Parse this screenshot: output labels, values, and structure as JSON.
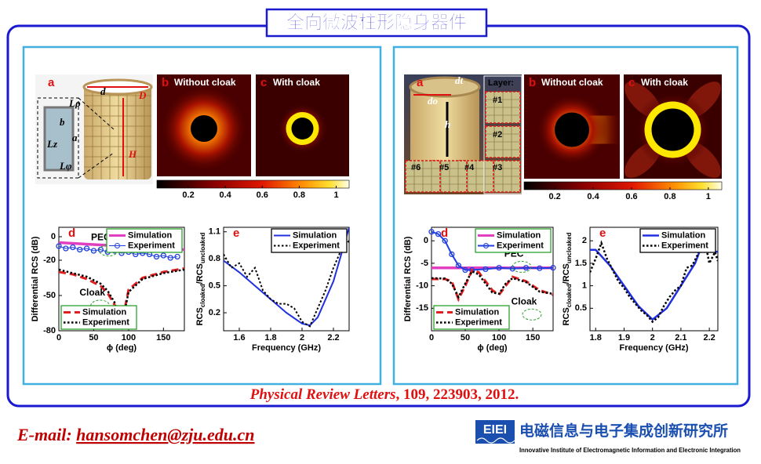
{
  "title": "全向微波柱形隐身器件",
  "citation": {
    "journal": "Physical Review Letters",
    "details": ", 109, 223903, 2012."
  },
  "email": {
    "label": "E-mail:",
    "address": "hansomchen@zju.edu.cn"
  },
  "logo": {
    "mark": "EIEI",
    "name": "电磁信息与电子集成创新研究所",
    "subtitle": "Innovative Institute of Electromagnetic Information and Electronic Integration"
  },
  "figures": [
    {
      "photo_label": "a",
      "photo_texts": [
        "Lρ",
        "b",
        "Lz",
        "a",
        "Lφ",
        "d",
        "D",
        "H"
      ],
      "maps": [
        {
          "label": "b",
          "title": "Without cloak"
        },
        {
          "label": "c",
          "title": "With cloak"
        }
      ],
      "colorbar": {
        "clim": [
          0.03,
          1.07
        ],
        "ticks": [
          0.2,
          0.4,
          0.6,
          0.8,
          1
        ]
      }
    },
    {
      "photo_label": "a",
      "photo_texts": [
        "dt",
        "do",
        "h",
        "Layer:",
        "#1",
        "#2",
        "#3",
        "#4",
        "#5",
        "#6"
      ],
      "maps": [
        {
          "label": "b",
          "title": "Without cloak"
        },
        {
          "label": "c",
          "title": "With cloak"
        }
      ],
      "colorbar": {
        "clim": [
          0.04,
          1.07
        ],
        "ticks": [
          0.2,
          0.4,
          0.6,
          0.8,
          1
        ]
      }
    }
  ],
  "chart_data": [
    {
      "type": "line",
      "label": "d",
      "ylabel_parts": [
        {
          "text": "Differential RCS (dB)"
        }
      ],
      "xlabel": "ϕ (deg)",
      "xlim": [
        0,
        180
      ],
      "ylim": [
        -80,
        8
      ],
      "xticks": [
        0,
        50,
        100,
        150
      ],
      "yticks": [
        0,
        -20,
        -50,
        -80
      ],
      "legend_edge": "#2ca02c",
      "series": [
        {
          "name": "Simulation",
          "color": "#e040c0",
          "style": "solid",
          "width": 3.5,
          "legend": "top-right",
          "x": [
            0,
            30,
            60,
            90,
            120,
            150,
            180
          ],
          "values": [
            -5,
            -6,
            -7,
            -8,
            -9,
            -10,
            -11
          ]
        },
        {
          "name": "Experiment",
          "color": "#2040e0",
          "style": "solid",
          "width": 1,
          "marker": "circle",
          "legend": "top-right",
          "x": [
            0,
            10,
            20,
            30,
            40,
            50,
            60,
            70,
            80,
            90,
            100,
            110,
            120,
            130,
            140,
            150,
            160,
            170
          ],
          "values": [
            -8,
            -10,
            -9,
            -11,
            -10,
            -12,
            -11,
            -13,
            -12,
            -14,
            -13,
            -15,
            -14,
            -15,
            -17,
            -16,
            -18,
            -17
          ]
        },
        {
          "name": "Simulation",
          "color": "#e02020",
          "style": "dashed",
          "width": 3,
          "legend": "bottom-left",
          "x": [
            0,
            20,
            40,
            60,
            70,
            80,
            85,
            90,
            95,
            100,
            120,
            150,
            180
          ],
          "values": [
            -30,
            -32,
            -36,
            -42,
            -48,
            -58,
            -68,
            -76,
            -60,
            -45,
            -35,
            -30,
            -27
          ]
        },
        {
          "name": "Experiment",
          "color": "#000000",
          "style": "dotted",
          "width": 2.5,
          "legend": "bottom-left",
          "x": [
            0,
            20,
            40,
            60,
            70,
            80,
            85,
            90,
            95,
            100,
            120,
            150,
            180
          ],
          "values": [
            -28,
            -31,
            -34,
            -40,
            -46,
            -56,
            -66,
            -78,
            -62,
            -47,
            -36,
            -31,
            -28
          ]
        }
      ],
      "annotations": [
        {
          "text": "PEC",
          "x": 60,
          "y": -1
        },
        {
          "text": "Cloak",
          "x": 48,
          "y": -48
        }
      ]
    },
    {
      "type": "line",
      "label": "e",
      "ylabel_parts": [
        {
          "text": "RCS"
        },
        {
          "text": "cloaked",
          "sub": true
        },
        {
          "text": "/RCS"
        },
        {
          "text": "uncloaked",
          "sub": true
        }
      ],
      "xlabel": "Frequency (GHz)",
      "xlim": [
        1.5,
        2.3
      ],
      "ylim": [
        0,
        1.15
      ],
      "xticks": [
        1.6,
        1.8,
        2,
        2.2
      ],
      "yticks": [
        0.2,
        0.5,
        0.8,
        1.1
      ],
      "legend_edge": "#000000",
      "series": [
        {
          "name": "Simulation",
          "color": "#2030e0",
          "style": "solid",
          "width": 2,
          "legend": "top-right",
          "x": [
            1.5,
            1.6,
            1.7,
            1.8,
            1.9,
            2.0,
            2.05,
            2.1,
            2.2,
            2.3
          ],
          "values": [
            0.78,
            0.65,
            0.5,
            0.35,
            0.2,
            0.08,
            0.06,
            0.15,
            0.55,
            1.15
          ]
        },
        {
          "name": "Experiment",
          "color": "#000000",
          "style": "dotted",
          "width": 2,
          "legend": "top-right",
          "x": [
            1.5,
            1.55,
            1.6,
            1.65,
            1.7,
            1.75,
            1.8,
            1.85,
            1.9,
            1.95,
            2.0,
            2.05,
            2.1,
            2.15,
            2.2,
            2.25,
            2.3
          ],
          "values": [
            0.85,
            0.7,
            0.75,
            0.6,
            0.7,
            0.45,
            0.35,
            0.3,
            0.3,
            0.25,
            0.1,
            0.05,
            0.25,
            0.45,
            0.7,
            0.9,
            1.0
          ]
        }
      ]
    },
    {
      "type": "line",
      "label": "d",
      "ylabel_parts": [
        {
          "text": "Differential RCS (dB)"
        }
      ],
      "xlabel": "ϕ (deg)",
      "xlim": [
        0,
        180
      ],
      "ylim": [
        -20,
        3
      ],
      "xticks": [
        0,
        50,
        100,
        150
      ],
      "yticks": [
        0,
        -5,
        -10,
        -15
      ],
      "legend_edge": "#2ca02c",
      "series": [
        {
          "name": "Simulation",
          "color": "#e040c0",
          "style": "solid",
          "width": 3.5,
          "legend": "top-right",
          "x": [
            0,
            60,
            120,
            180
          ],
          "values": [
            -6,
            -6,
            -6,
            -6
          ]
        },
        {
          "name": "Experiment",
          "color": "#2040e0",
          "style": "solid",
          "width": 2,
          "marker": "circle",
          "legend": "top-right",
          "x": [
            0,
            10,
            20,
            30,
            40,
            50,
            60,
            80,
            100,
            120,
            140,
            160,
            180
          ],
          "values": [
            2,
            1.5,
            0,
            -3,
            -5.5,
            -6.5,
            -6.5,
            -6.3,
            -6,
            -6.2,
            -6,
            -6.1,
            -6
          ]
        },
        {
          "name": "Simulation",
          "color": "#e02020",
          "style": "dashed",
          "width": 3,
          "legend": "bottom-left",
          "x": [
            0,
            20,
            30,
            40,
            50,
            60,
            70,
            80,
            90,
            100,
            110,
            120,
            140,
            160,
            180
          ],
          "values": [
            -8.5,
            -8.5,
            -9,
            -13,
            -10,
            -6.5,
            -7,
            -9,
            -11,
            -12,
            -10,
            -8,
            -9,
            -11,
            -12
          ]
        },
        {
          "name": "Experiment",
          "color": "#000000",
          "style": "dotted",
          "width": 2.5,
          "legend": "bottom-left",
          "x": [
            0,
            20,
            30,
            40,
            50,
            60,
            70,
            80,
            90,
            100,
            110,
            120,
            140,
            160,
            180
          ],
          "values": [
            -8.3,
            -8.4,
            -9.5,
            -12.5,
            -9.5,
            -6.8,
            -7.5,
            -9.5,
            -11.5,
            -11.8,
            -9.5,
            -8.3,
            -9.2,
            -11.3,
            -11.8
          ]
        }
      ],
      "annotations": [
        {
          "text": "PEC",
          "x": 122,
          "y": -3
        },
        {
          "text": "Cloak",
          "x": 137,
          "y": -13.6
        }
      ]
    },
    {
      "type": "line",
      "label": "e",
      "ylabel_parts": [
        {
          "text": "RCS"
        },
        {
          "text": "cloaked",
          "sub": true
        },
        {
          "text": "/RCS"
        },
        {
          "text": "uncloaked",
          "sub": true
        }
      ],
      "xlabel": "Frequency (GHz)",
      "xlim": [
        1.78,
        2.23
      ],
      "ylim": [
        0,
        2.3
      ],
      "xticks": [
        1.8,
        1.9,
        2,
        2.1,
        2.2
      ],
      "yticks": [
        0.5,
        1,
        1.5,
        2
      ],
      "legend_edge": "#000000",
      "series": [
        {
          "name": "Simulation",
          "color": "#2030e0",
          "style": "solid",
          "width": 2.5,
          "legend": "top-right",
          "x": [
            1.78,
            1.8,
            1.85,
            1.9,
            1.95,
            2.0,
            2.05,
            2.1,
            2.15,
            2.18,
            2.2,
            2.23
          ],
          "values": [
            1.8,
            1.8,
            1.45,
            1.0,
            0.55,
            0.25,
            0.5,
            1.0,
            1.5,
            2.0,
            1.8,
            1.75
          ]
        },
        {
          "name": "Experiment",
          "color": "#000000",
          "style": "dotted",
          "width": 2.5,
          "legend": "top-right",
          "x": [
            1.78,
            1.8,
            1.82,
            1.84,
            1.86,
            1.88,
            1.9,
            1.92,
            1.94,
            1.96,
            1.98,
            2.0,
            2.02,
            2.04,
            2.06,
            2.08,
            2.1,
            2.12,
            2.14,
            2.16,
            2.18,
            2.2,
            2.22,
            2.23
          ],
          "values": [
            1.3,
            1.6,
            1.95,
            1.6,
            1.35,
            1.1,
            0.95,
            0.75,
            0.6,
            0.45,
            0.35,
            0.2,
            0.3,
            0.55,
            0.75,
            0.9,
            1.0,
            1.4,
            1.45,
            1.7,
            2.15,
            1.5,
            1.75,
            1.55
          ]
        }
      ]
    }
  ]
}
